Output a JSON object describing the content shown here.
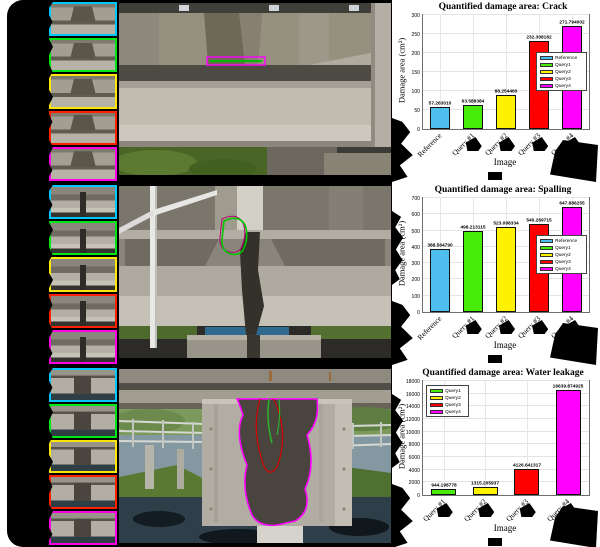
{
  "figure": {
    "rows": [
      {
        "id": "crack",
        "thumbnail_border_colors": [
          "#00C8FF",
          "#00E616",
          "#FFE60A",
          "#FF2000",
          "#FF00E6"
        ],
        "annotation_colors": [
          "#FF00FF",
          "#00BB00"
        ]
      },
      {
        "id": "spalling",
        "thumbnail_border_colors": [
          "#00C8FF",
          "#00E616",
          "#FFE60A",
          "#FF2000",
          "#FF00E6"
        ],
        "annotation_colors": [
          "#00C400",
          "#B8006E"
        ]
      },
      {
        "id": "water-leakage",
        "thumbnail_border_colors": [
          "#00C8FF",
          "#00E616",
          "#FFE60A",
          "#FF2000",
          "#FF00E6"
        ],
        "annotation_colors": [
          "#FF00FF",
          "#D40000",
          "#2FAE2F"
        ]
      }
    ]
  },
  "chart_data": [
    {
      "type": "bar",
      "title": "Quantified damage area: Crack",
      "xlabel": "Image",
      "ylabel": "Damage area (cm²)",
      "ylim": [
        0,
        300
      ],
      "yticks": [
        0,
        50,
        100,
        150,
        200,
        250,
        300
      ],
      "grid": true,
      "categories": [
        "Reference",
        "Query #1",
        "Query #2",
        "Query #3",
        "Query #4"
      ],
      "values": [
        57.26301,
        63.588384,
        88.25446,
        232.308182,
        271.794002
      ],
      "value_labels": [
        "57.263010",
        "63.588384",
        "88.254460",
        "232.308182",
        "271.794002"
      ],
      "bar_colors": [
        "#4DBEEE",
        "#46EB0A",
        "#FFF200",
        "#FF0000",
        "#FF00FF"
      ],
      "legend": {
        "position": "right",
        "entries": [
          {
            "label": "Reference",
            "color": "#4DBEEE"
          },
          {
            "label": "Query1",
            "color": "#46EB0A"
          },
          {
            "label": "Query2",
            "color": "#FFF200"
          },
          {
            "label": "Query3",
            "color": "#FF0000"
          },
          {
            "label": "Query4",
            "color": "#FF00FF"
          }
        ]
      }
    },
    {
      "type": "bar",
      "title": "Quantified damage area: Spalling",
      "xlabel": "Image",
      "ylabel": "Damage area (cm²)",
      "ylim": [
        0,
        700
      ],
      "yticks": [
        0,
        100,
        200,
        300,
        400,
        500,
        600,
        700
      ],
      "grid": true,
      "categories": [
        "Reference",
        "Query #1",
        "Query #2",
        "Query #3",
        "Query #4"
      ],
      "values": [
        388.56479,
        498.213115,
        523.098334,
        540.269715,
        647.886255
      ],
      "value_labels": [
        "388.564790",
        "498.213115",
        "523.098334",
        "540.269715",
        "647.886255"
      ],
      "bar_colors": [
        "#4DBEEE",
        "#46EB0A",
        "#FFF200",
        "#FF0000",
        "#FF00FF"
      ],
      "legend": {
        "position": "right",
        "entries": [
          {
            "label": "Reference",
            "color": "#4DBEEE"
          },
          {
            "label": "Query1",
            "color": "#46EB0A"
          },
          {
            "label": "Query2",
            "color": "#FFF200"
          },
          {
            "label": "Query3",
            "color": "#FF0000"
          },
          {
            "label": "Query4",
            "color": "#FF00FF"
          }
        ]
      }
    },
    {
      "type": "bar",
      "title": "Quantified damage area: Water leakage",
      "xlabel": "Image",
      "ylabel": "Damage area (cm²)",
      "ylim": [
        0,
        18000
      ],
      "yticks": [
        0,
        2000,
        4000,
        6000,
        8000,
        10000,
        12000,
        14000,
        16000,
        18000
      ],
      "grid": true,
      "categories": [
        "Query #1",
        "Query #2",
        "Query #3",
        "Query #4"
      ],
      "values": [
        944.198778,
        1315.205937,
        4126.641317,
        16639.874925
      ],
      "value_labels": [
        "944.198778",
        "1315.205937",
        "4126.641317",
        "16639.874925"
      ],
      "bar_colors": [
        "#46EB0A",
        "#FFF200",
        "#FF0000",
        "#FF00FF"
      ],
      "legend": {
        "position": "topleft",
        "entries": [
          {
            "label": "Query1",
            "color": "#46EB0A"
          },
          {
            "label": "Query2",
            "color": "#FFF200"
          },
          {
            "label": "Query3",
            "color": "#FF0000"
          },
          {
            "label": "Query4",
            "color": "#FF00FF"
          }
        ]
      }
    }
  ]
}
